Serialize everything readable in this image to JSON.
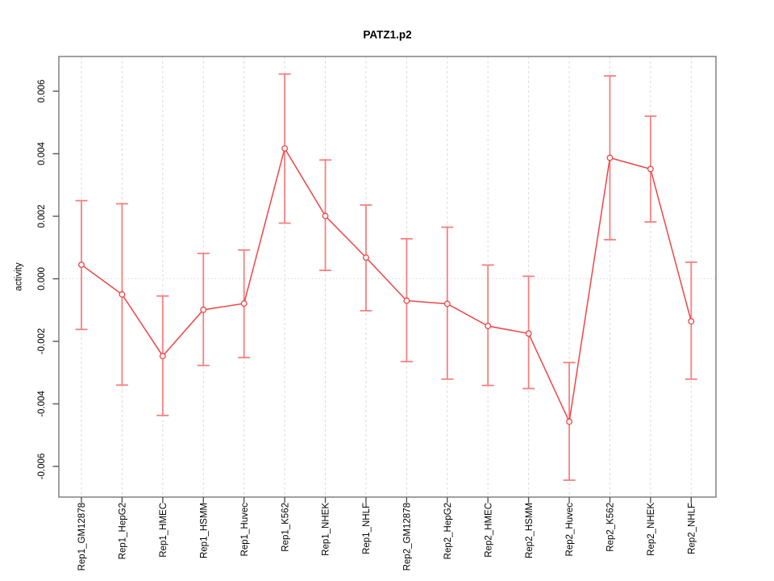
{
  "chart_data": {
    "type": "line",
    "title": "PATZ1.p2",
    "xlabel": "",
    "ylabel": "activity",
    "ylim": [
      -0.00698,
      0.00711
    ],
    "yticks": [
      0.006,
      0.004,
      0.002,
      0.0,
      -0.002,
      -0.004,
      -0.006
    ],
    "ytick_labels": [
      "0.006",
      "0.004",
      "0.002",
      "0.000",
      "-0.002",
      "-0.004",
      "-0.006"
    ],
    "legend": "none",
    "grid": {
      "vertical_dashed_per_category": true,
      "horizontal_dotted_at_zero": true
    },
    "categories": [
      "Rep1_GM12878",
      "Rep1_HepG2",
      "Rep1_HMEC",
      "Rep1_HSMM",
      "Rep1_Huvec",
      "Rep1_K562",
      "Rep1_NHEK",
      "Rep1_NHLF",
      "Rep2_GM12878",
      "Rep2_HepG2",
      "Rep2_HMEC",
      "Rep2_HSMM",
      "Rep2_Huvec",
      "Rep2_K562",
      "Rep2_NHEK",
      "Rep2_NHLF"
    ],
    "series": [
      {
        "name": "activity",
        "marker": "open-circle",
        "values": [
          0.00045,
          -0.0005,
          -0.00247,
          -0.00099,
          -0.00079,
          0.00417,
          0.00201,
          0.00068,
          -0.0007,
          -0.0008,
          -0.00151,
          -0.00175,
          -0.00457,
          0.00387,
          0.00351,
          -0.00136
        ],
        "upper": [
          0.0025,
          0.0024,
          -0.00055,
          0.00081,
          0.00092,
          0.00655,
          0.0038,
          0.00236,
          0.00128,
          0.00165,
          0.00044,
          8e-05,
          -0.00268,
          0.00649,
          0.0052,
          0.00053
        ],
        "lower": [
          -0.00162,
          -0.0034,
          -0.00437,
          -0.00277,
          -0.00252,
          0.00178,
          0.00027,
          -0.00102,
          -0.00265,
          -0.00321,
          -0.00341,
          -0.00351,
          -0.00644,
          0.00125,
          0.00182,
          -0.00321
        ]
      }
    ],
    "colors": {
      "line": "#ee4545",
      "error_bar": "#f58080",
      "marker_stroke": "#ee4545",
      "marker_fill": "#ffffff",
      "grid": "#dadada",
      "zero_line": "#d8d8d8",
      "frame": "#888888",
      "tick": "#555555",
      "text": "#000000",
      "background": "#ffffff"
    }
  }
}
